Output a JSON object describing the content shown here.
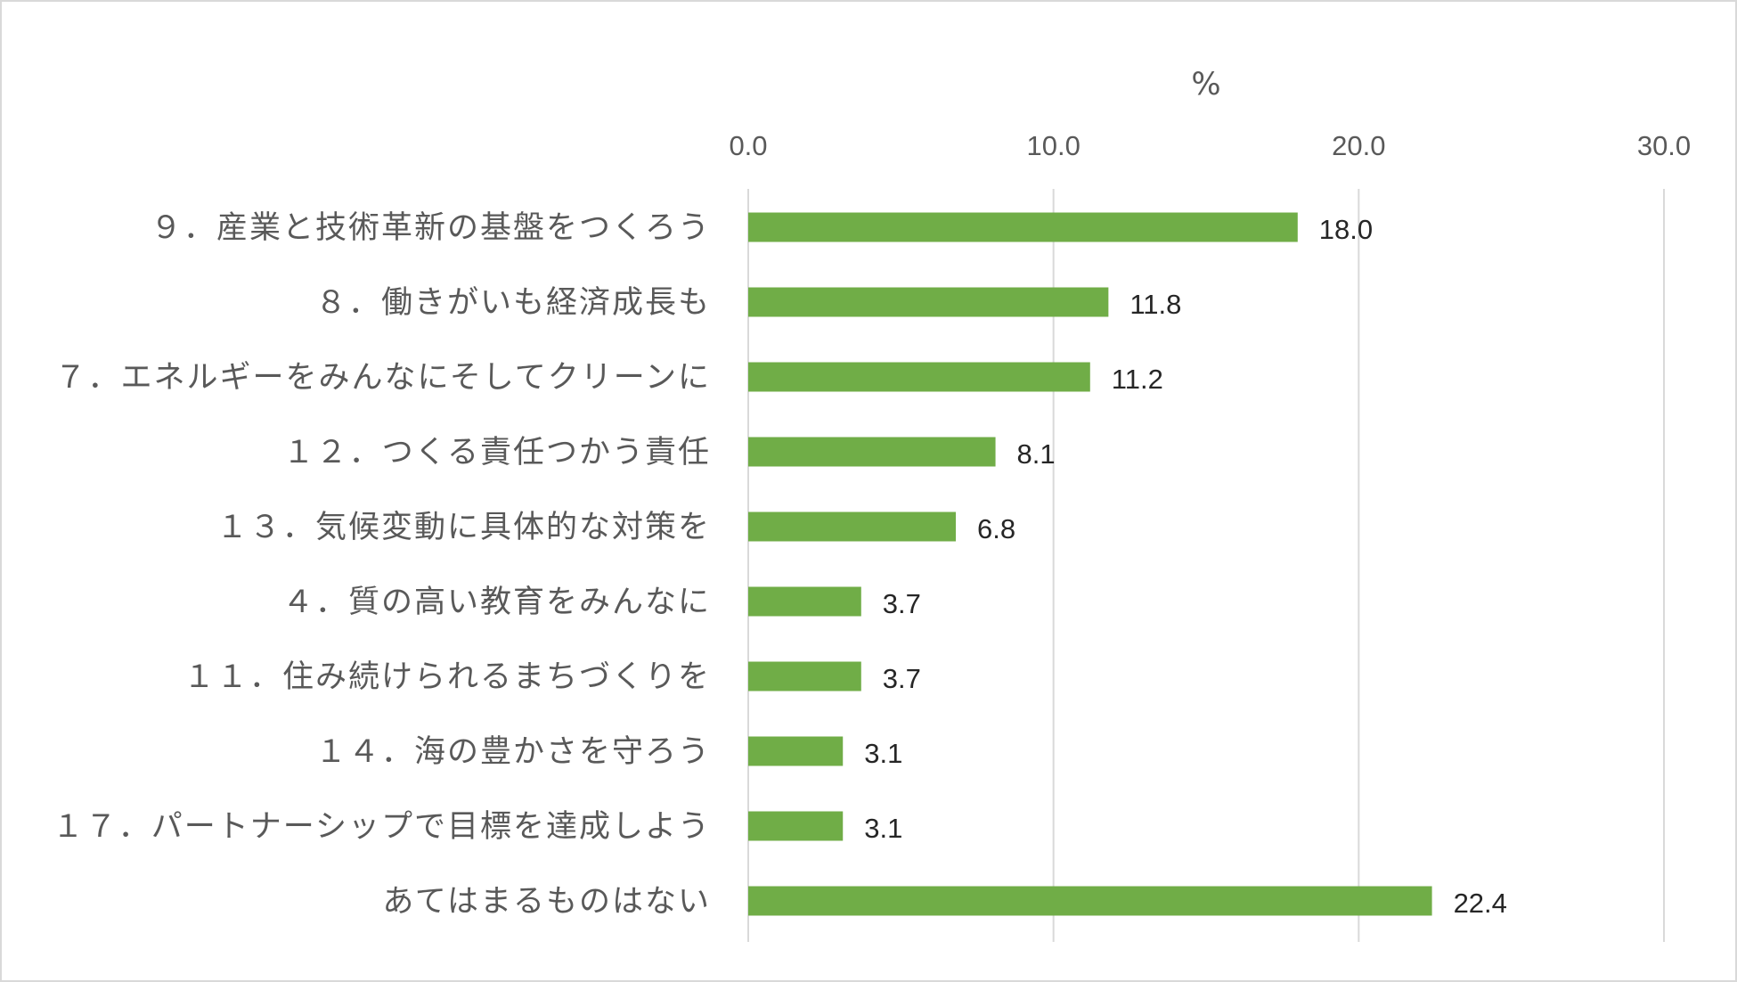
{
  "chart_data": {
    "type": "bar",
    "orientation": "horizontal",
    "unit_label": "%",
    "categories": [
      "９．産業と技術革新の基盤をつくろう",
      "８．働きがいも経済成長も",
      "７．エネルギーをみんなにそしてクリーンに",
      "１２．つくる責任つかう責任",
      "１３．気候変動に具体的な対策を",
      "４．質の高い教育をみんなに",
      "１１．住み続けられるまちづくりを",
      "１４．海の豊かさを守ろう",
      "１７．パートナーシップで目標を達成しよう",
      "あてはまるものはない"
    ],
    "values": [
      18.0,
      11.8,
      11.2,
      8.1,
      6.8,
      3.7,
      3.7,
      3.1,
      3.1,
      22.4
    ],
    "value_labels": [
      "18.0",
      "11.8",
      "11.2",
      "8.1",
      "6.8",
      "3.7",
      "3.7",
      "3.1",
      "3.1",
      "22.4"
    ],
    "xlim": [
      0,
      30
    ],
    "ticks": [
      "0.0",
      "10.0",
      "20.0",
      "30.0"
    ],
    "tick_values": [
      0,
      10,
      20,
      30
    ],
    "grid": true,
    "axis_position": "top",
    "bar_color": "#70ad47"
  }
}
